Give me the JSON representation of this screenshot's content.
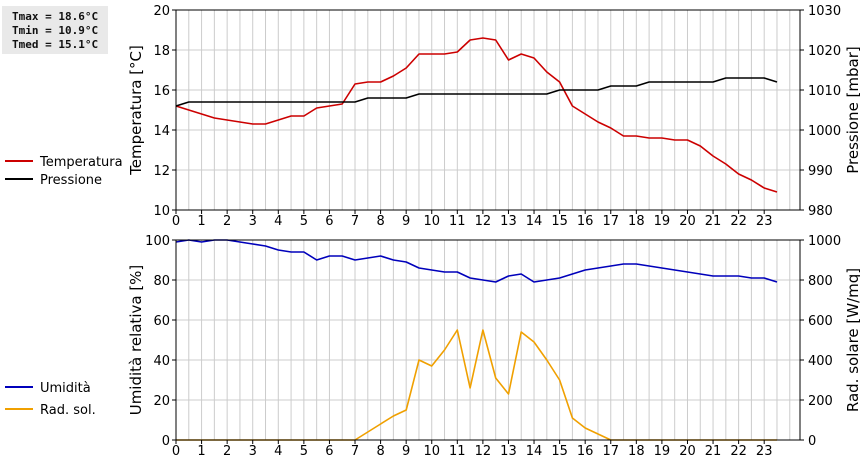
{
  "stats": {
    "tmax": "Tmax = 18.6°C",
    "tmin": "Tmin = 10.9°C",
    "tmed": "Tmed = 15.1°C"
  },
  "colors": {
    "temperatura": "#cc0000",
    "pressione": "#000000",
    "umidita": "#0000bb",
    "rad_sol": "#f0a000",
    "grid": "#cccccc"
  },
  "chart_data": [
    {
      "type": "line",
      "x_ticks": [
        0,
        1,
        2,
        3,
        4,
        5,
        6,
        7,
        8,
        9,
        10,
        11,
        12,
        13,
        14,
        15,
        16,
        17,
        18,
        19,
        20,
        21,
        22,
        23
      ],
      "x_range": [
        0,
        24.4
      ],
      "y_left": {
        "label": "Temperatura [°C]",
        "range": [
          10,
          20
        ],
        "ticks": [
          10,
          12,
          14,
          16,
          18,
          20
        ]
      },
      "y_right": {
        "label": "Pressione [mbar]",
        "range": [
          980,
          1030
        ],
        "ticks": [
          980,
          990,
          1000,
          1010,
          1020,
          1030
        ]
      },
      "grid": true,
      "series": [
        {
          "name": "Temperatura",
          "axis": "left",
          "x": [
            0,
            0.5,
            1,
            1.5,
            2,
            2.5,
            3,
            3.5,
            4,
            4.5,
            5,
            5.5,
            6,
            6.5,
            7,
            7.5,
            8,
            8.5,
            9,
            9.5,
            10,
            10.5,
            11,
            11.5,
            12,
            12.5,
            13,
            13.5,
            14,
            14.5,
            15,
            15.5,
            16,
            16.5,
            17,
            17.5,
            18,
            18.5,
            19,
            19.5,
            20,
            20.5,
            21,
            21.5,
            22,
            22.5,
            23,
            23.5
          ],
          "y": [
            15.2,
            15.0,
            14.8,
            14.6,
            14.5,
            14.4,
            14.3,
            14.3,
            14.5,
            14.7,
            14.7,
            15.1,
            15.2,
            15.3,
            16.3,
            16.4,
            16.4,
            16.7,
            17.1,
            17.8,
            17.8,
            17.8,
            17.9,
            18.5,
            18.6,
            18.5,
            17.5,
            17.8,
            17.6,
            16.9,
            16.4,
            15.2,
            14.8,
            14.4,
            14.1,
            13.7,
            13.7,
            13.6,
            13.6,
            13.5,
            13.5,
            13.2,
            12.7,
            12.3,
            11.8,
            11.5,
            11.1,
            10.9
          ]
        },
        {
          "name": "Pressione",
          "axis": "right",
          "x": [
            0,
            0.5,
            1,
            1.5,
            2,
            2.5,
            3,
            3.5,
            4,
            4.5,
            5,
            5.5,
            6,
            6.5,
            7,
            7.5,
            8,
            8.5,
            9,
            9.5,
            10,
            10.5,
            11,
            11.5,
            12,
            12.5,
            13,
            13.5,
            14,
            14.5,
            15,
            15.5,
            16,
            16.5,
            17,
            17.5,
            18,
            18.5,
            19,
            19.5,
            20,
            20.5,
            21,
            21.5,
            22,
            22.5,
            23,
            23.5
          ],
          "y": [
            1006,
            1007,
            1007,
            1007,
            1007,
            1007,
            1007,
            1007,
            1007,
            1007,
            1007,
            1007,
            1007,
            1007,
            1007,
            1008,
            1008,
            1008,
            1008,
            1009,
            1009,
            1009,
            1009,
            1009,
            1009,
            1009,
            1009,
            1009,
            1009,
            1009,
            1010,
            1010,
            1010,
            1010,
            1011,
            1011,
            1011,
            1012,
            1012,
            1012,
            1012,
            1012,
            1012,
            1013,
            1013,
            1013,
            1013,
            1012
          ]
        }
      ]
    },
    {
      "type": "line",
      "x_ticks": [
        0,
        1,
        2,
        3,
        4,
        5,
        6,
        7,
        8,
        9,
        10,
        11,
        12,
        13,
        14,
        15,
        16,
        17,
        18,
        19,
        20,
        21,
        22,
        23
      ],
      "x_range": [
        0,
        24.4
      ],
      "y_left": {
        "label": "Umidità relativa [%]",
        "range": [
          0,
          100
        ],
        "ticks": [
          0,
          20,
          40,
          60,
          80,
          100
        ]
      },
      "y_right": {
        "label": "Rad. solare [W/mq]",
        "range": [
          0,
          1000
        ],
        "ticks": [
          0,
          200,
          400,
          600,
          800,
          1000
        ]
      },
      "grid": true,
      "series": [
        {
          "name": "Umidità",
          "axis": "left",
          "x": [
            0,
            0.5,
            1,
            1.5,
            2,
            2.5,
            3,
            3.5,
            4,
            4.5,
            5,
            5.5,
            6,
            6.5,
            7,
            7.5,
            8,
            8.5,
            9,
            9.5,
            10,
            10.5,
            11,
            11.5,
            12,
            12.5,
            13,
            13.5,
            14,
            14.5,
            15,
            15.5,
            16,
            16.5,
            17,
            17.5,
            18,
            18.5,
            19,
            19.5,
            20,
            20.5,
            21,
            21.5,
            22,
            22.5,
            23,
            23.5
          ],
          "y": [
            99,
            100,
            99,
            100,
            100,
            99,
            98,
            97,
            95,
            94,
            94,
            90,
            92,
            92,
            90,
            91,
            92,
            90,
            89,
            86,
            85,
            84,
            84,
            81,
            80,
            79,
            82,
            83,
            79,
            80,
            81,
            83,
            85,
            86,
            87,
            88,
            88,
            87,
            86,
            85,
            84,
            83,
            82,
            82,
            82,
            81,
            81,
            79
          ]
        },
        {
          "name": "Rad. sol.",
          "axis": "right",
          "x": [
            0,
            0.5,
            1,
            1.5,
            2,
            2.5,
            3,
            3.5,
            4,
            4.5,
            5,
            5.5,
            6,
            6.5,
            7,
            7.5,
            8,
            8.5,
            9,
            9.5,
            10,
            10.5,
            11,
            11.5,
            12,
            12.5,
            13,
            13.5,
            14,
            14.5,
            15,
            15.5,
            16,
            16.5,
            17,
            17.5,
            18,
            18.5,
            19,
            19.5,
            20,
            20.5,
            21,
            21.5,
            22,
            22.5,
            23,
            23.5
          ],
          "y": [
            0,
            0,
            0,
            0,
            0,
            0,
            0,
            0,
            0,
            0,
            0,
            0,
            0,
            0,
            0,
            40,
            80,
            120,
            150,
            400,
            370,
            450,
            550,
            260,
            550,
            310,
            230,
            540,
            490,
            400,
            300,
            110,
            60,
            30,
            0,
            0,
            0,
            0,
            0,
            0,
            0,
            0,
            0,
            0,
            0,
            0,
            0,
            0
          ]
        }
      ]
    }
  ]
}
